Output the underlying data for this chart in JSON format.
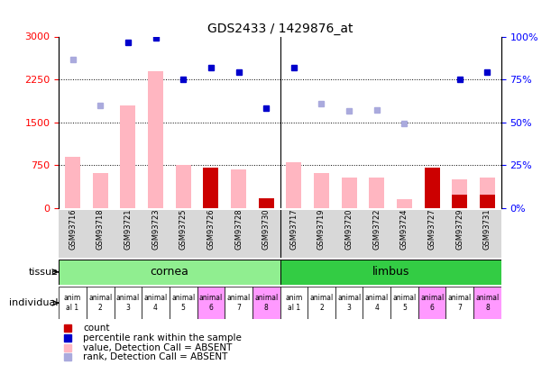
{
  "title": "GDS2433 / 1429876_at",
  "samples": [
    "GSM93716",
    "GSM93718",
    "GSM93721",
    "GSM93723",
    "GSM93725",
    "GSM93726",
    "GSM93728",
    "GSM93730",
    "GSM93717",
    "GSM93719",
    "GSM93720",
    "GSM93722",
    "GSM93724",
    "GSM93727",
    "GSM93729",
    "GSM93731"
  ],
  "values": [
    900,
    620,
    1800,
    2400,
    750,
    680,
    680,
    0,
    800,
    620,
    540,
    530,
    160,
    0,
    500,
    530
  ],
  "counts": [
    0,
    0,
    0,
    0,
    0,
    700,
    0,
    170,
    0,
    0,
    0,
    0,
    0,
    700,
    230,
    240
  ],
  "value_absent": [
    true,
    true,
    true,
    true,
    true,
    false,
    true,
    false,
    true,
    true,
    true,
    true,
    true,
    false,
    true,
    false
  ],
  "rank_values": [
    2600,
    1800,
    2900,
    2980,
    2250,
    2450,
    2370,
    1750,
    2450,
    1830,
    1700,
    1720,
    1480,
    0,
    2250,
    2370
  ],
  "rank_absent": [
    true,
    true,
    false,
    false,
    false,
    false,
    false,
    false,
    false,
    true,
    true,
    true,
    true,
    false,
    false,
    false
  ],
  "individual": [
    "anim\nal 1",
    "animal\n2",
    "animal\n3",
    "animal\n4",
    "animal\n5",
    "animal\n6",
    "animal\n7",
    "animal\n8",
    "anim\nal 1",
    "animal\n2",
    "animal\n3",
    "animal\n4",
    "animal\n5",
    "animal\n6",
    "animal\n7",
    "animal\n8"
  ],
  "indiv_colors": [
    "#FFFFFF",
    "#FFFFFF",
    "#FFFFFF",
    "#FFFFFF",
    "#FFFFFF",
    "#FF99FF",
    "#FFFFFF",
    "#FF99FF",
    "#FFFFFF",
    "#FFFFFF",
    "#FFFFFF",
    "#FFFFFF",
    "#FFFFFF",
    "#FF99FF",
    "#FFFFFF",
    "#FF99FF"
  ],
  "ylim_left": [
    0,
    3000
  ],
  "ylim_right": [
    0,
    100
  ],
  "yticks_left": [
    0,
    750,
    1500,
    2250,
    3000
  ],
  "yticks_right": [
    0,
    25,
    50,
    75,
    100
  ],
  "color_value_absent": "#FFB6C1",
  "color_count": "#CC0000",
  "color_rank_absent": "#AAAADD",
  "color_rank_present": "#0000CC",
  "color_cornea": "#90EE90",
  "color_limbus": "#33CC44",
  "bar_width": 0.55
}
